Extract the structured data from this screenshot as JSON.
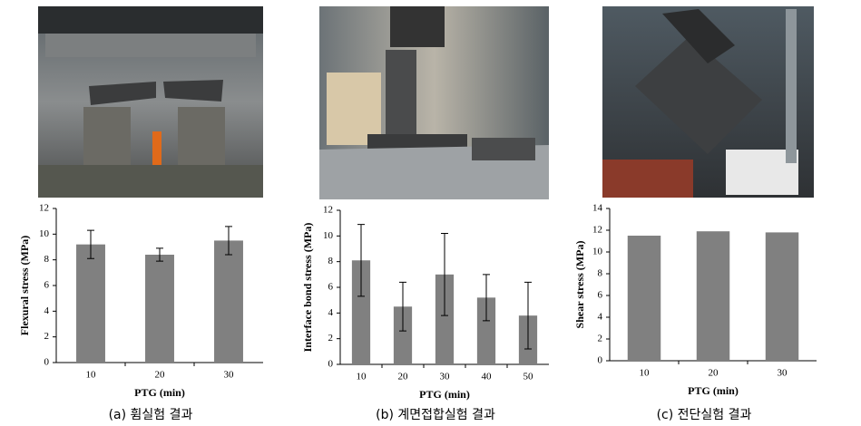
{
  "chart_data": [
    {
      "type": "bar",
      "caption": "(a) 휨실험 결과",
      "ylabel": "Flexural stress (MPa)",
      "xlabel": "PTG (min)",
      "categories": [
        "10",
        "20",
        "30"
      ],
      "values": [
        9.2,
        8.4,
        9.5
      ],
      "errors": [
        1.1,
        0.5,
        1.1
      ],
      "color": "#808080",
      "ylim": [
        0,
        12
      ],
      "yticks": [
        0,
        2,
        4,
        6,
        8,
        10,
        12
      ]
    },
    {
      "type": "bar",
      "caption": "(b) 계면접합실험 결과",
      "ylabel": "Interface bond stress (MPa)",
      "xlabel": "PTG (min)",
      "categories": [
        "10",
        "20",
        "30",
        "40",
        "50"
      ],
      "values": [
        8.1,
        4.5,
        7.0,
        5.2,
        3.8
      ],
      "errors": [
        2.8,
        1.9,
        3.2,
        1.8,
        2.6
      ],
      "color": "#808080",
      "ylim": [
        0,
        12
      ],
      "yticks": [
        0,
        2,
        4,
        6,
        8,
        10,
        12
      ]
    },
    {
      "type": "bar",
      "caption": "(c) 전단실험 결과",
      "ylabel": "Shear stress (MPa)",
      "xlabel": "PTG (min)",
      "categories": [
        "10",
        "20",
        "30"
      ],
      "values": [
        11.5,
        11.9,
        11.8
      ],
      "color": "#808080",
      "ylim": [
        0,
        14
      ],
      "yticks": [
        0,
        2,
        4,
        6,
        8,
        10,
        12,
        14
      ]
    }
  ]
}
